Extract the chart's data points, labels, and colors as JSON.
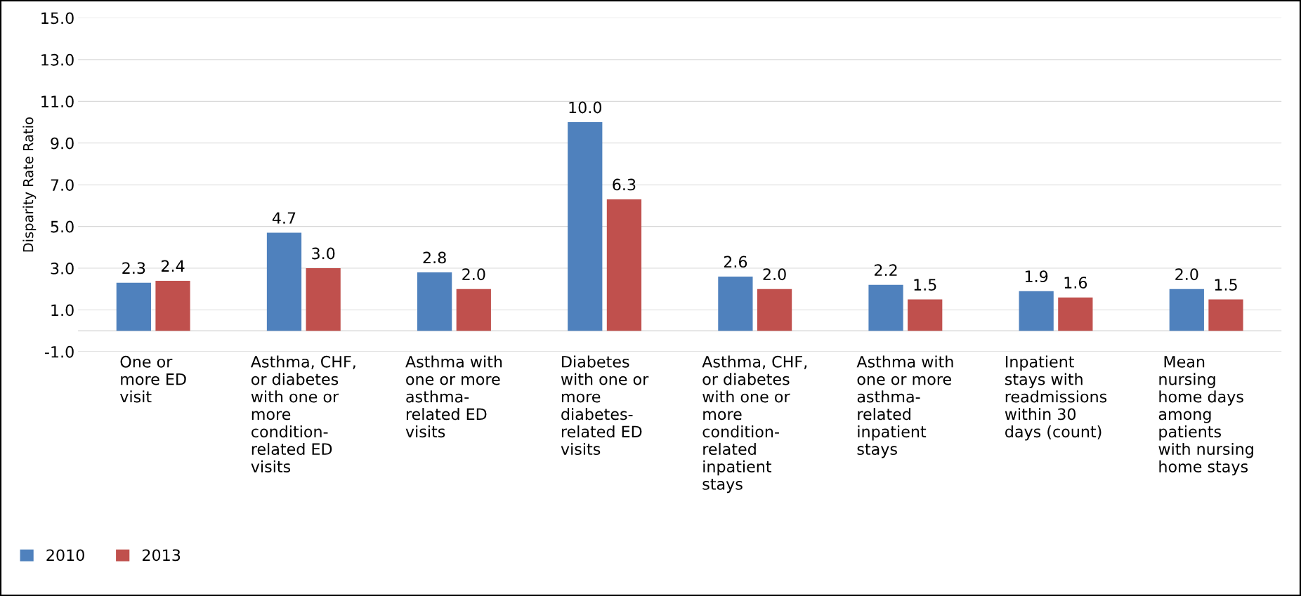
{
  "chart_data": {
    "type": "bar",
    "ylabel": "Disparity Rate Ratio",
    "categories": [
      "One or\nmore ED\nvisit",
      "Asthma, CHF,\nor diabetes\nwith one or\nmore\ncondition-\nrelated ED\nvisits",
      "Asthma with\none or more\nasthma-\nrelated ED\nvisits",
      "Diabetes\nwith one or\nmore\ndiabetes-\nrelated ED\nvisits",
      "Asthma, CHF,\nor diabetes\nwith one or\nmore\ncondition-\nrelated\ninpatient\nstays",
      "Asthma with\none or more\nasthma-\nrelated\ninpatient\nstays",
      "Inpatient\nstays with\nreadmissions\nwithin 30\ndays (count)",
      " Mean\nnursing\nhome days\namong\npatients\nwith nursing\nhome stays"
    ],
    "series": [
      {
        "name": "2010",
        "color": "#4f81bd",
        "values": [
          2.3,
          4.7,
          2.8,
          10.0,
          2.6,
          2.2,
          1.9,
          2.0
        ],
        "value_labels": [
          "2.3",
          "4.7",
          "2.8",
          "10.0",
          "2.6",
          "2.2",
          "1.9",
          "2.0"
        ]
      },
      {
        "name": "2013",
        "color": "#c0504d",
        "values": [
          2.4,
          3.0,
          2.0,
          6.3,
          2.0,
          1.5,
          1.6,
          1.5
        ],
        "value_labels": [
          "2.4",
          "3.0",
          "2.0",
          "6.3",
          "2.0",
          "1.5",
          "1.6",
          "1.5"
        ]
      }
    ],
    "ylim": [
      -1,
      15
    ],
    "yticks": [
      {
        "value": -1,
        "label": "-1.0"
      },
      {
        "value": 1,
        "label": "1.0"
      },
      {
        "value": 3,
        "label": "3.0"
      },
      {
        "value": 5,
        "label": "5.0"
      },
      {
        "value": 7,
        "label": "7.0"
      },
      {
        "value": 9,
        "label": "9.0"
      },
      {
        "value": 11,
        "label": "11.0"
      },
      {
        "value": 13,
        "label": "13.0"
      },
      {
        "value": 15,
        "label": "15.0"
      }
    ],
    "grid": "y",
    "legend": "bottom left"
  }
}
